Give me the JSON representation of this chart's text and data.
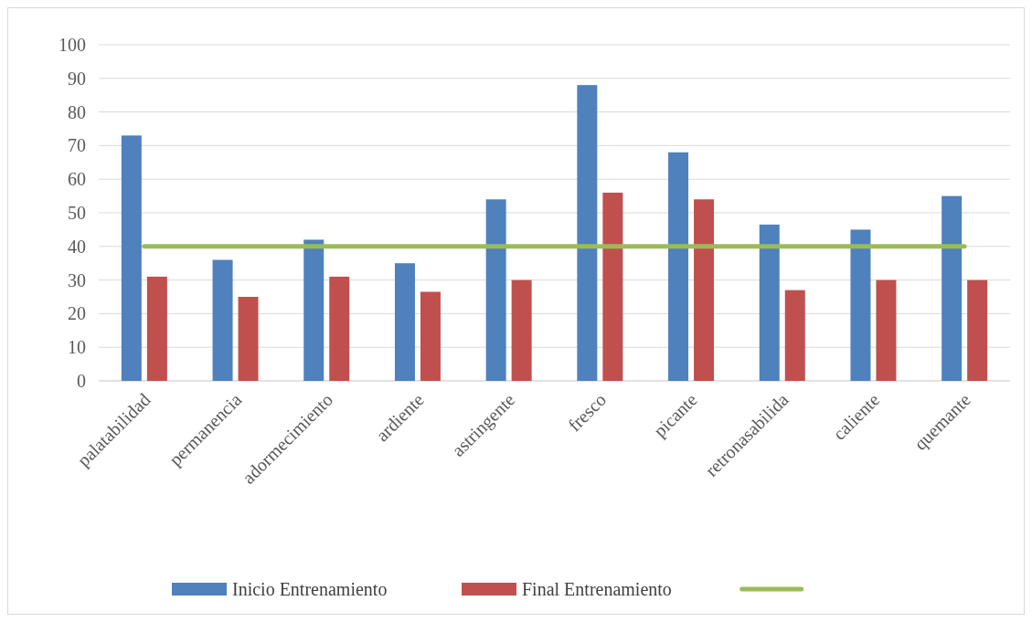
{
  "chart_data": {
    "type": "bar",
    "categories": [
      "palatabilidad",
      "permanencia",
      "adormecimiento",
      "ardiente",
      "astringente",
      "fresco",
      "picante",
      "retronasabilida",
      "caliente",
      "quemante"
    ],
    "series": [
      {
        "name": "Inicio Entrenamiento",
        "color": "#4f81bd",
        "values": [
          73,
          36,
          42,
          35,
          54,
          88,
          68,
          46.5,
          45,
          55
        ]
      },
      {
        "name": "Final Entrenamiento",
        "color": "#c0504d",
        "values": [
          31,
          25,
          31,
          26.5,
          30,
          56,
          54,
          27,
          30,
          30
        ]
      },
      {
        "type": "line",
        "color": "#9bbb59",
        "values": [
          40,
          40,
          40,
          40,
          40,
          40,
          40,
          40,
          40,
          40
        ]
      }
    ],
    "ylim": [
      0,
      100
    ],
    "yticks": [
      0,
      10,
      20,
      30,
      40,
      50,
      60,
      70,
      80,
      90,
      100
    ],
    "grid": "y",
    "legend": "bottom"
  }
}
